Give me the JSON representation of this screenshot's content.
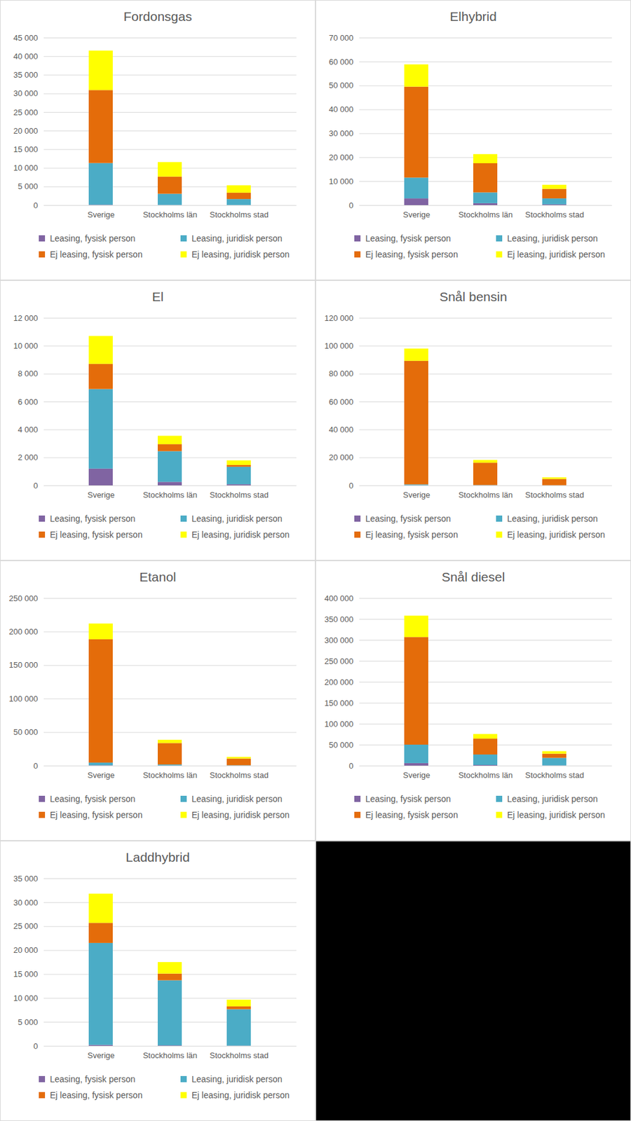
{
  "chart_data": [
    {
      "type": "bar",
      "title": "Fordonsgas",
      "stacked": true,
      "grid": true,
      "legend": "bottom",
      "categories": [
        "Sverige",
        "Stockholms län",
        "Stockholms stad"
      ],
      "series": [
        {
          "name": "Leasing, fysisk person",
          "color": "#8064a2",
          "values": [
            100,
            50,
            30
          ]
        },
        {
          "name": "Leasing, juridisk person",
          "color": "#4bacc6",
          "values": [
            11200,
            3000,
            1600
          ]
        },
        {
          "name": "Ej leasing, fysisk person",
          "color": "#e46c0a",
          "values": [
            19600,
            4600,
            1700
          ]
        },
        {
          "name": "Ej leasing, juridisk person",
          "color": "#ffff00",
          "values": [
            10600,
            3900,
            2000
          ]
        }
      ],
      "ylim": [
        0,
        45000
      ],
      "yticks": [
        0,
        {
          "value": 5000,
          "label": "5 000"
        },
        {
          "value": 10000,
          "label": "10 000"
        },
        {
          "value": 15000,
          "label": "15 000"
        },
        {
          "value": 20000,
          "label": "20 000"
        },
        {
          "value": 25000,
          "label": "25 000"
        },
        {
          "value": 30000,
          "label": "30 000"
        },
        {
          "value": 35000,
          "label": "35 000"
        },
        {
          "value": 40000,
          "label": "40 000"
        },
        {
          "value": 45000,
          "label": "45 000"
        }
      ]
    },
    {
      "type": "bar",
      "title": "Elhybrid",
      "stacked": true,
      "grid": true,
      "legend": "bottom",
      "categories": [
        "Sverige",
        "Stockholms län",
        "Stockholms stad"
      ],
      "series": [
        {
          "name": "Leasing, fysisk person",
          "color": "#8064a2",
          "values": [
            2800,
            800,
            300
          ]
        },
        {
          "name": "Leasing, juridisk person",
          "color": "#4bacc6",
          "values": [
            8700,
            4500,
            2500
          ]
        },
        {
          "name": "Ej leasing, fysisk person",
          "color": "#e46c0a",
          "values": [
            38000,
            12200,
            4000
          ]
        },
        {
          "name": "Ej leasing, juridisk person",
          "color": "#ffff00",
          "values": [
            9300,
            3800,
            1700
          ]
        }
      ],
      "ylim": [
        0,
        70000
      ],
      "yticks": [
        0,
        {
          "value": 10000,
          "label": "10 000"
        },
        {
          "value": 20000,
          "label": "20 000"
        },
        {
          "value": 30000,
          "label": "30 000"
        },
        {
          "value": 40000,
          "label": "40 000"
        },
        {
          "value": 50000,
          "label": "50 000"
        },
        {
          "value": 60000,
          "label": "60 000"
        },
        {
          "value": 70000,
          "label": "70 000"
        }
      ]
    },
    {
      "type": "bar",
      "title": "El",
      "stacked": true,
      "grid": true,
      "legend": "bottom",
      "categories": [
        "Sverige",
        "Stockholms län",
        "Stockholms stad"
      ],
      "series": [
        {
          "name": "Leasing, fysisk person",
          "color": "#8064a2",
          "values": [
            1200,
            250,
            80
          ]
        },
        {
          "name": "Leasing, juridisk person",
          "color": "#4bacc6",
          "values": [
            5700,
            2200,
            1250
          ]
        },
        {
          "name": "Ej leasing, fysisk person",
          "color": "#e46c0a",
          "values": [
            1800,
            500,
            130
          ]
        },
        {
          "name": "Ej leasing, juridisk person",
          "color": "#ffff00",
          "values": [
            2000,
            600,
            330
          ]
        }
      ],
      "ylim": [
        0,
        12000
      ],
      "yticks": [
        0,
        {
          "value": 2000,
          "label": "2 000"
        },
        {
          "value": 4000,
          "label": "4 000"
        },
        {
          "value": 6000,
          "label": "6 000"
        },
        {
          "value": 8000,
          "label": "8 000"
        },
        {
          "value": 10000,
          "label": "10 000"
        },
        {
          "value": 12000,
          "label": "12 000"
        }
      ]
    },
    {
      "type": "bar",
      "title": "Snål bensin",
      "stacked": true,
      "grid": true,
      "legend": "bottom",
      "categories": [
        "Sverige",
        "Stockholms län",
        "Stockholms stad"
      ],
      "series": [
        {
          "name": "Leasing, fysisk person",
          "color": "#8064a2",
          "values": [
            100,
            30,
            10
          ]
        },
        {
          "name": "Leasing, juridisk person",
          "color": "#4bacc6",
          "values": [
            600,
            200,
            100
          ]
        },
        {
          "name": "Ej leasing, fysisk person",
          "color": "#e46c0a",
          "values": [
            88500,
            16000,
            4500
          ]
        },
        {
          "name": "Ej leasing, juridisk person",
          "color": "#ffff00",
          "values": [
            8800,
            2000,
            1100
          ]
        }
      ],
      "ylim": [
        0,
        120000
      ],
      "yticks": [
        0,
        {
          "value": 20000,
          "label": "20 000"
        },
        {
          "value": 40000,
          "label": "40 000"
        },
        {
          "value": 60000,
          "label": "60 000"
        },
        {
          "value": 80000,
          "label": "80 000"
        },
        {
          "value": 100000,
          "label": "100 000"
        },
        {
          "value": 120000,
          "label": "120 000"
        }
      ]
    },
    {
      "type": "bar",
      "title": "Etanol",
      "stacked": true,
      "grid": true,
      "legend": "bottom",
      "categories": [
        "Sverige",
        "Stockholms län",
        "Stockholms stad"
      ],
      "series": [
        {
          "name": "Leasing, fysisk person",
          "color": "#8064a2",
          "values": [
            500,
            200,
            50
          ]
        },
        {
          "name": "Leasing, juridisk person",
          "color": "#4bacc6",
          "values": [
            4000,
            1500,
            500
          ]
        },
        {
          "name": "Ej leasing, fysisk person",
          "color": "#e46c0a",
          "values": [
            184000,
            32000,
            10000
          ]
        },
        {
          "name": "Ej leasing, juridisk person",
          "color": "#ffff00",
          "values": [
            23500,
            4800,
            2500
          ]
        }
      ],
      "ylim": [
        0,
        250000
      ],
      "yticks": [
        0,
        {
          "value": 50000,
          "label": "50 000"
        },
        {
          "value": 100000,
          "label": "100 000"
        },
        {
          "value": 150000,
          "label": "150 000"
        },
        {
          "value": 200000,
          "label": "200 000"
        },
        {
          "value": 250000,
          "label": "250 000"
        }
      ]
    },
    {
      "type": "bar",
      "title": "Snål diesel",
      "stacked": true,
      "grid": true,
      "legend": "bottom",
      "categories": [
        "Sverige",
        "Stockholms län",
        "Stockholms stad"
      ],
      "series": [
        {
          "name": "Leasing, fysisk person",
          "color": "#8064a2",
          "values": [
            6000,
            1500,
            500
          ]
        },
        {
          "name": "Leasing, juridisk person",
          "color": "#4bacc6",
          "values": [
            44000,
            25000,
            18000
          ]
        },
        {
          "name": "Ej leasing, fysisk person",
          "color": "#e46c0a",
          "values": [
            257000,
            38000,
            10000
          ]
        },
        {
          "name": "Ej leasing, juridisk person",
          "color": "#ffff00",
          "values": [
            51000,
            11000,
            6000
          ]
        }
      ],
      "ylim": [
        0,
        400000
      ],
      "yticks": [
        0,
        {
          "value": 50000,
          "label": "50 000"
        },
        {
          "value": 100000,
          "label": "100 000"
        },
        {
          "value": 150000,
          "label": "150 000"
        },
        {
          "value": 200000,
          "label": "200 000"
        },
        {
          "value": 250000,
          "label": "250 000"
        },
        {
          "value": 300000,
          "label": "300 000"
        },
        {
          "value": 350000,
          "label": "350 000"
        },
        {
          "value": 400000,
          "label": "400 000"
        }
      ]
    },
    {
      "type": "bar",
      "title": "Laddhybrid",
      "stacked": true,
      "grid": true,
      "legend": "bottom",
      "categories": [
        "Sverige",
        "Stockholms län",
        "Stockholms stad"
      ],
      "series": [
        {
          "name": "Leasing, fysisk person",
          "color": "#8064a2",
          "values": [
            200,
            100,
            50
          ]
        },
        {
          "name": "Leasing, juridisk person",
          "color": "#4bacc6",
          "values": [
            21300,
            13600,
            7600
          ]
        },
        {
          "name": "Ej leasing, fysisk person",
          "color": "#e46c0a",
          "values": [
            4200,
            1400,
            600
          ]
        },
        {
          "name": "Ej leasing, juridisk person",
          "color": "#ffff00",
          "values": [
            6100,
            2400,
            1400
          ]
        }
      ],
      "ylim": [
        0,
        35000
      ],
      "yticks": [
        0,
        {
          "value": 5000,
          "label": "5 000"
        },
        {
          "value": 10000,
          "label": "10 000"
        },
        {
          "value": 15000,
          "label": "15 000"
        },
        {
          "value": 20000,
          "label": "20 000"
        },
        {
          "value": 25000,
          "label": "25 000"
        },
        {
          "value": 30000,
          "label": "30 000"
        },
        {
          "value": 35000,
          "label": "35 000"
        }
      ]
    }
  ]
}
